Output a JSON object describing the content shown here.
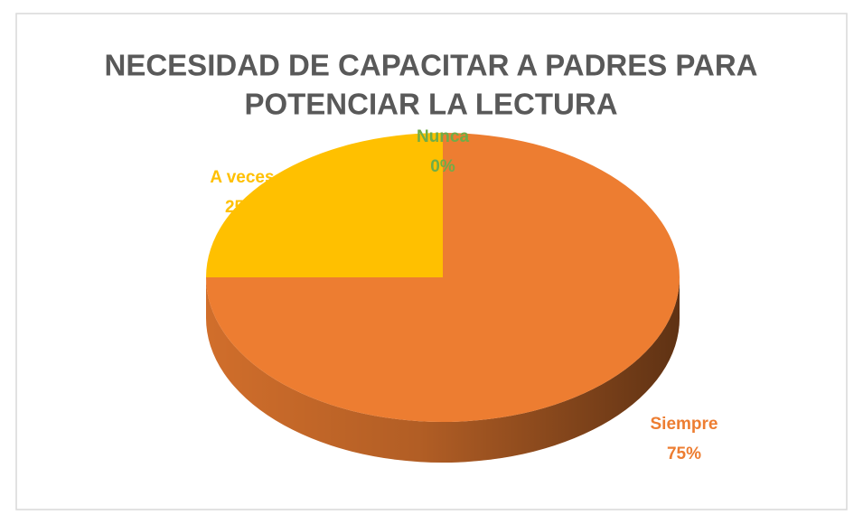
{
  "chart_data": {
    "type": "pie",
    "title": [
      "NECESIDAD DE CAPACITAR A PADRES PARA",
      "POTENCIAR LA LECTURA"
    ],
    "categories": [
      "Siempre",
      "A veces",
      "Nunca"
    ],
    "values": [
      75,
      25,
      0
    ],
    "value_labels": [
      "75%",
      "25%",
      "0%"
    ],
    "colors": [
      "#ED7D31",
      "#FFC000",
      "#70AD47"
    ]
  }
}
